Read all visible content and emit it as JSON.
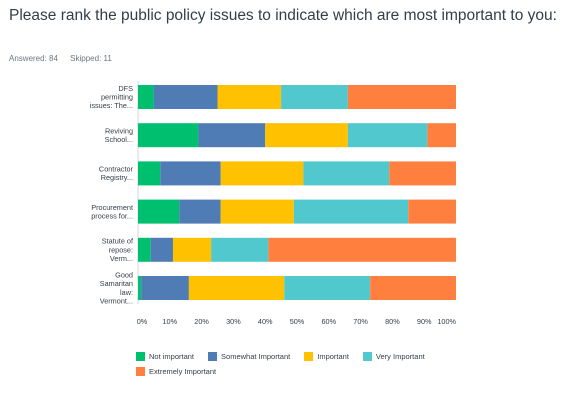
{
  "question": {
    "title": "Please rank the public policy issues to indicate which are most important to you:",
    "answered": "Answered: 84",
    "skipped": "Skipped: 11"
  },
  "chart_data": {
    "type": "bar",
    "orientation": "horizontal",
    "stacked": true,
    "categories": [
      [
        "DFS",
        "permitting",
        "issues: The..."
      ],
      [
        "Reviving",
        "School..."
      ],
      [
        "Contractor",
        "Registry..."
      ],
      [
        "Procurement",
        "process for..."
      ],
      [
        "Statute of",
        "repose:",
        "Verm..."
      ],
      [
        "Good",
        "Samaritan",
        "law:",
        "Vermont..."
      ]
    ],
    "series": [
      {
        "name": "Not important",
        "color": "#00bf6f",
        "values": [
          5,
          19,
          7,
          13,
          4,
          1
        ]
      },
      {
        "name": "Somewhat Important",
        "color": "#507cb6",
        "values": [
          20,
          21,
          19,
          13,
          7,
          15
        ]
      },
      {
        "name": "Important",
        "color": "#ffc100",
        "values": [
          20,
          26,
          26,
          23,
          12,
          30
        ]
      },
      {
        "name": "Very Important",
        "color": "#50c8ce",
        "values": [
          21,
          25,
          27,
          36,
          18,
          27
        ]
      },
      {
        "name": "Extremely Important",
        "color": "#ff7f3f",
        "values": [
          34,
          9,
          21,
          15,
          59,
          27
        ]
      }
    ],
    "x_ticks": [
      "0%",
      "10%",
      "20%",
      "30%",
      "40%",
      "50%",
      "60%",
      "70%",
      "80%",
      "90%",
      "100%"
    ],
    "xlim": [
      0,
      100
    ],
    "legend_position": "bottom"
  }
}
